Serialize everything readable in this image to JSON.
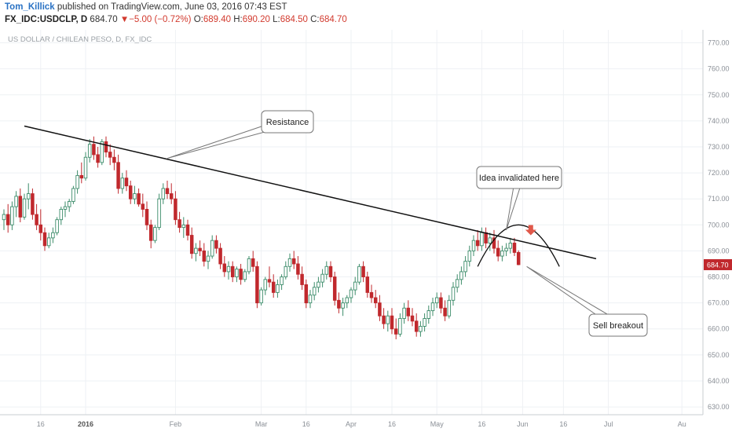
{
  "header": {
    "author": "Tom_Killick",
    "published_text": "published on TradingView.com, June 03, 2016 07:43 EST",
    "symbol": "FX_IDC:USDCLP, D",
    "last": "684.70",
    "change_arrow": "▼",
    "change": "−5.00 (−0.72%)",
    "open_label": "O:",
    "open": "689.40",
    "high_label": "H:",
    "high": "690.20",
    "low_label": "L:",
    "low": "684.50",
    "close_label": "C:",
    "close": "684.70"
  },
  "colors": {
    "up": "#3c8c6a",
    "down": "#c0282d",
    "grid": "#eef1f4",
    "axis": "#8a8f96",
    "price_tag": "#c0282d",
    "arrow": "#e0584a"
  },
  "chart_data": {
    "type": "candlestick",
    "title": "US DOLLAR / CHILEAN PESO, D, FX_IDC",
    "y_ticks": [
      630,
      640,
      650,
      660,
      670,
      680,
      690,
      700,
      710,
      720,
      730,
      740,
      750,
      760,
      770
    ],
    "ylim": [
      627,
      775
    ],
    "current_price": 684.7,
    "x_ticks": [
      {
        "label": "16",
        "index": 9
      },
      {
        "label": "2016",
        "index": 20
      },
      {
        "label": "Feb",
        "index": 42
      },
      {
        "label": "Mar",
        "index": 63
      },
      {
        "label": "16",
        "index": 74
      },
      {
        "label": "Apr",
        "index": 85
      },
      {
        "label": "16",
        "index": 95
      },
      {
        "label": "May",
        "index": 106
      },
      {
        "label": "16",
        "index": 117
      },
      {
        "label": "Jun",
        "index": 127
      },
      {
        "label": "16",
        "index": 137
      },
      {
        "label": "Jul",
        "index": 148
      },
      {
        "label": "Au",
        "index": 166
      }
    ],
    "candles": [
      {
        "o": 702.0,
        "h": 706.0,
        "l": 698.0,
        "c": 704.0
      },
      {
        "o": 704.0,
        "h": 708.0,
        "l": 697.0,
        "c": 700.0
      },
      {
        "o": 700.0,
        "h": 709.0,
        "l": 698.0,
        "c": 707.0
      },
      {
        "o": 707.0,
        "h": 713.0,
        "l": 703.0,
        "c": 711.0
      },
      {
        "o": 711.0,
        "h": 714.0,
        "l": 701.0,
        "c": 703.0
      },
      {
        "o": 703.0,
        "h": 712.0,
        "l": 702.0,
        "c": 710.0
      },
      {
        "o": 710.0,
        "h": 716.0,
        "l": 706.0,
        "c": 712.0
      },
      {
        "o": 712.0,
        "h": 714.0,
        "l": 702.0,
        "c": 704.0
      },
      {
        "o": 704.0,
        "h": 708.0,
        "l": 698.0,
        "c": 700.0
      },
      {
        "o": 700.0,
        "h": 706.0,
        "l": 694.0,
        "c": 697.0
      },
      {
        "o": 697.0,
        "h": 699.0,
        "l": 690.0,
        "c": 692.0
      },
      {
        "o": 692.0,
        "h": 697.0,
        "l": 691.0,
        "c": 695.0
      },
      {
        "o": 695.0,
        "h": 699.0,
        "l": 693.0,
        "c": 697.0
      },
      {
        "o": 697.0,
        "h": 703.0,
        "l": 696.0,
        "c": 702.0
      },
      {
        "o": 702.0,
        "h": 707.0,
        "l": 700.0,
        "c": 706.0
      },
      {
        "o": 706.0,
        "h": 709.0,
        "l": 703.0,
        "c": 707.0
      },
      {
        "o": 707.0,
        "h": 710.0,
        "l": 705.0,
        "c": 709.0
      },
      {
        "o": 709.0,
        "h": 715.0,
        "l": 708.0,
        "c": 714.0
      },
      {
        "o": 714.0,
        "h": 721.0,
        "l": 712.0,
        "c": 719.0
      },
      {
        "o": 719.0,
        "h": 724.0,
        "l": 716.0,
        "c": 718.0
      },
      {
        "o": 718.0,
        "h": 728.0,
        "l": 717.0,
        "c": 726.0
      },
      {
        "o": 726.0,
        "h": 733.0,
        "l": 724.0,
        "c": 731.0
      },
      {
        "o": 731.0,
        "h": 734.0,
        "l": 725.0,
        "c": 727.0
      },
      {
        "o": 727.0,
        "h": 730.0,
        "l": 722.0,
        "c": 724.0
      },
      {
        "o": 724.0,
        "h": 733.0,
        "l": 723.0,
        "c": 732.0
      },
      {
        "o": 732.0,
        "h": 734.0,
        "l": 726.0,
        "c": 728.0
      },
      {
        "o": 728.0,
        "h": 731.0,
        "l": 723.0,
        "c": 726.0
      },
      {
        "o": 726.0,
        "h": 729.0,
        "l": 721.0,
        "c": 724.0
      },
      {
        "o": 724.0,
        "h": 727.0,
        "l": 712.0,
        "c": 714.0
      },
      {
        "o": 714.0,
        "h": 720.0,
        "l": 712.0,
        "c": 718.0
      },
      {
        "o": 718.0,
        "h": 721.0,
        "l": 713.0,
        "c": 715.0
      },
      {
        "o": 715.0,
        "h": 717.0,
        "l": 708.0,
        "c": 710.0
      },
      {
        "o": 710.0,
        "h": 715.0,
        "l": 708.0,
        "c": 712.0
      },
      {
        "o": 712.0,
        "h": 714.0,
        "l": 707.0,
        "c": 708.0
      },
      {
        "o": 708.0,
        "h": 712.0,
        "l": 703.0,
        "c": 706.0
      },
      {
        "o": 706.0,
        "h": 709.0,
        "l": 698.0,
        "c": 700.0
      },
      {
        "o": 700.0,
        "h": 702.0,
        "l": 691.0,
        "c": 694.0
      },
      {
        "o": 694.0,
        "h": 700.0,
        "l": 693.0,
        "c": 699.0
      },
      {
        "o": 699.0,
        "h": 712.0,
        "l": 698.0,
        "c": 710.0
      },
      {
        "o": 710.0,
        "h": 716.0,
        "l": 708.0,
        "c": 714.0
      },
      {
        "o": 714.0,
        "h": 717.0,
        "l": 710.0,
        "c": 712.0
      },
      {
        "o": 712.0,
        "h": 716.0,
        "l": 708.0,
        "c": 710.0
      },
      {
        "o": 710.0,
        "h": 713.0,
        "l": 700.0,
        "c": 702.0
      },
      {
        "o": 702.0,
        "h": 705.0,
        "l": 697.0,
        "c": 699.0
      },
      {
        "o": 699.0,
        "h": 703.0,
        "l": 695.0,
        "c": 700.0
      },
      {
        "o": 700.0,
        "h": 702.0,
        "l": 694.0,
        "c": 696.0
      },
      {
        "o": 696.0,
        "h": 699.0,
        "l": 687.0,
        "c": 689.0
      },
      {
        "o": 689.0,
        "h": 693.0,
        "l": 686.0,
        "c": 691.0
      },
      {
        "o": 691.0,
        "h": 694.0,
        "l": 688.0,
        "c": 690.0
      },
      {
        "o": 690.0,
        "h": 693.0,
        "l": 684.0,
        "c": 686.0
      },
      {
        "o": 686.0,
        "h": 690.0,
        "l": 683.0,
        "c": 688.0
      },
      {
        "o": 688.0,
        "h": 696.0,
        "l": 687.0,
        "c": 694.0
      },
      {
        "o": 694.0,
        "h": 696.0,
        "l": 689.0,
        "c": 691.0
      },
      {
        "o": 691.0,
        "h": 693.0,
        "l": 683.0,
        "c": 685.0
      },
      {
        "o": 685.0,
        "h": 688.0,
        "l": 680.0,
        "c": 682.0
      },
      {
        "o": 682.0,
        "h": 686.0,
        "l": 679.0,
        "c": 684.0
      },
      {
        "o": 684.0,
        "h": 686.0,
        "l": 678.0,
        "c": 680.0
      },
      {
        "o": 680.0,
        "h": 684.0,
        "l": 678.0,
        "c": 683.0
      },
      {
        "o": 683.0,
        "h": 685.0,
        "l": 677.0,
        "c": 679.0
      },
      {
        "o": 679.0,
        "h": 683.0,
        "l": 678.0,
        "c": 682.0
      },
      {
        "o": 682.0,
        "h": 688.0,
        "l": 681.0,
        "c": 687.0
      },
      {
        "o": 687.0,
        "h": 690.0,
        "l": 682.0,
        "c": 684.0
      },
      {
        "o": 684.0,
        "h": 686.0,
        "l": 668.0,
        "c": 670.0
      },
      {
        "o": 670.0,
        "h": 676.0,
        "l": 669.0,
        "c": 675.0
      },
      {
        "o": 675.0,
        "h": 680.0,
        "l": 673.0,
        "c": 679.0
      },
      {
        "o": 679.0,
        "h": 684.0,
        "l": 676.0,
        "c": 678.0
      },
      {
        "o": 678.0,
        "h": 681.0,
        "l": 672.0,
        "c": 674.0
      },
      {
        "o": 674.0,
        "h": 679.0,
        "l": 672.0,
        "c": 677.0
      },
      {
        "o": 677.0,
        "h": 681.0,
        "l": 675.0,
        "c": 680.0
      },
      {
        "o": 680.0,
        "h": 686.0,
        "l": 679.0,
        "c": 684.0
      },
      {
        "o": 684.0,
        "h": 689.0,
        "l": 682.0,
        "c": 687.0
      },
      {
        "o": 687.0,
        "h": 690.0,
        "l": 683.0,
        "c": 685.0
      },
      {
        "o": 685.0,
        "h": 688.0,
        "l": 679.0,
        "c": 681.0
      },
      {
        "o": 681.0,
        "h": 684.0,
        "l": 675.0,
        "c": 677.0
      },
      {
        "o": 677.0,
        "h": 679.0,
        "l": 668.0,
        "c": 670.0
      },
      {
        "o": 670.0,
        "h": 675.0,
        "l": 668.0,
        "c": 673.0
      },
      {
        "o": 673.0,
        "h": 678.0,
        "l": 671.0,
        "c": 676.0
      },
      {
        "o": 676.0,
        "h": 680.0,
        "l": 674.0,
        "c": 678.0
      },
      {
        "o": 678.0,
        "h": 683.0,
        "l": 676.0,
        "c": 681.0
      },
      {
        "o": 681.0,
        "h": 686.0,
        "l": 679.0,
        "c": 684.0
      },
      {
        "o": 684.0,
        "h": 686.0,
        "l": 678.0,
        "c": 680.0
      },
      {
        "o": 680.0,
        "h": 682.0,
        "l": 669.0,
        "c": 671.0
      },
      {
        "o": 671.0,
        "h": 674.0,
        "l": 666.0,
        "c": 668.0
      },
      {
        "o": 668.0,
        "h": 672.0,
        "l": 665.0,
        "c": 670.0
      },
      {
        "o": 670.0,
        "h": 673.0,
        "l": 668.0,
        "c": 672.0
      },
      {
        "o": 672.0,
        "h": 676.0,
        "l": 670.0,
        "c": 675.0
      },
      {
        "o": 675.0,
        "h": 680.0,
        "l": 673.0,
        "c": 678.0
      },
      {
        "o": 678.0,
        "h": 685.0,
        "l": 677.0,
        "c": 684.0
      },
      {
        "o": 684.0,
        "h": 686.0,
        "l": 678.0,
        "c": 680.0
      },
      {
        "o": 680.0,
        "h": 682.0,
        "l": 672.0,
        "c": 674.0
      },
      {
        "o": 674.0,
        "h": 677.0,
        "l": 670.0,
        "c": 672.0
      },
      {
        "o": 672.0,
        "h": 675.0,
        "l": 668.0,
        "c": 670.0
      },
      {
        "o": 670.0,
        "h": 673.0,
        "l": 663.0,
        "c": 665.0
      },
      {
        "o": 665.0,
        "h": 668.0,
        "l": 660.0,
        "c": 662.0
      },
      {
        "o": 662.0,
        "h": 667.0,
        "l": 659.0,
        "c": 665.0
      },
      {
        "o": 665.0,
        "h": 668.0,
        "l": 658.0,
        "c": 660.0
      },
      {
        "o": 660.0,
        "h": 664.0,
        "l": 656.0,
        "c": 658.0
      },
      {
        "o": 658.0,
        "h": 666.0,
        "l": 657.0,
        "c": 664.0
      },
      {
        "o": 664.0,
        "h": 670.0,
        "l": 662.0,
        "c": 668.0
      },
      {
        "o": 668.0,
        "h": 671.0,
        "l": 663.0,
        "c": 665.0
      },
      {
        "o": 665.0,
        "h": 668.0,
        "l": 661.0,
        "c": 663.0
      },
      {
        "o": 663.0,
        "h": 666.0,
        "l": 657.0,
        "c": 659.0
      },
      {
        "o": 659.0,
        "h": 663.0,
        "l": 657.0,
        "c": 661.0
      },
      {
        "o": 661.0,
        "h": 666.0,
        "l": 659.0,
        "c": 664.0
      },
      {
        "o": 664.0,
        "h": 669.0,
        "l": 662.0,
        "c": 667.0
      },
      {
        "o": 667.0,
        "h": 672.0,
        "l": 665.0,
        "c": 670.0
      },
      {
        "o": 670.0,
        "h": 674.0,
        "l": 668.0,
        "c": 672.0
      },
      {
        "o": 672.0,
        "h": 674.0,
        "l": 666.0,
        "c": 668.0
      },
      {
        "o": 668.0,
        "h": 671.0,
        "l": 663.0,
        "c": 665.0
      },
      {
        "o": 665.0,
        "h": 673.0,
        "l": 664.0,
        "c": 671.0
      },
      {
        "o": 671.0,
        "h": 678.0,
        "l": 669.0,
        "c": 676.0
      },
      {
        "o": 676.0,
        "h": 681.0,
        "l": 674.0,
        "c": 679.0
      },
      {
        "o": 679.0,
        "h": 684.0,
        "l": 677.0,
        "c": 682.0
      },
      {
        "o": 682.0,
        "h": 688.0,
        "l": 680.0,
        "c": 686.0
      },
      {
        "o": 686.0,
        "h": 692.0,
        "l": 684.0,
        "c": 690.0
      },
      {
        "o": 690.0,
        "h": 696.0,
        "l": 688.0,
        "c": 694.0
      },
      {
        "o": 694.0,
        "h": 698.0,
        "l": 690.0,
        "c": 692.0
      },
      {
        "o": 692.0,
        "h": 699.0,
        "l": 690.0,
        "c": 697.0
      },
      {
        "o": 697.0,
        "h": 699.0,
        "l": 691.0,
        "c": 693.0
      },
      {
        "o": 693.0,
        "h": 697.0,
        "l": 690.0,
        "c": 695.0
      },
      {
        "o": 695.0,
        "h": 698.0,
        "l": 689.0,
        "c": 691.0
      },
      {
        "o": 691.0,
        "h": 694.0,
        "l": 686.0,
        "c": 688.0
      },
      {
        "o": 688.0,
        "h": 692.0,
        "l": 686.0,
        "c": 690.0
      },
      {
        "o": 690.0,
        "h": 693.0,
        "l": 688.0,
        "c": 691.0
      },
      {
        "o": 691.0,
        "h": 695.0,
        "l": 689.0,
        "c": 693.0
      },
      {
        "o": 693.0,
        "h": 695.0,
        "l": 688.0,
        "c": 689.4
      },
      {
        "o": 689.4,
        "h": 690.2,
        "l": 684.5,
        "c": 684.7
      }
    ],
    "trendline": {
      "start": {
        "index": 5,
        "price": 738
      },
      "end": {
        "index": 145,
        "price": 687
      }
    },
    "arc": {
      "start": {
        "index": 116,
        "price": 684
      },
      "peak": {
        "index": 126,
        "price": 700
      },
      "end": {
        "index": 136,
        "price": 684
      }
    },
    "marker": {
      "index": 129,
      "price": 696
    },
    "annotations": [
      {
        "text": "Resistance",
        "anchor_index": 40,
        "anchor_price": 725.6
      },
      {
        "text": "Idea invalidated here",
        "anchor_index": 123,
        "anchor_price": 698
      },
      {
        "text": "Sell breakout",
        "anchor_index": 128,
        "anchor_price": 684
      }
    ]
  }
}
